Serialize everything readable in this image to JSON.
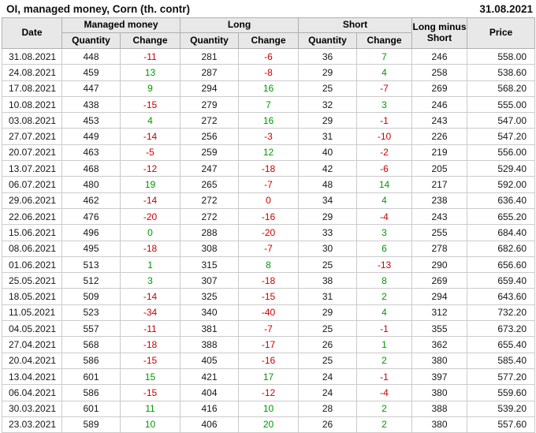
{
  "header": {
    "title": "OI, managed money, Corn (th. contr)",
    "date": "31.08.2021"
  },
  "table": {
    "columns": {
      "date": "Date",
      "managed_money": "Managed money",
      "long": "Long",
      "short": "Short",
      "quantity": "Quantity",
      "change": "Change",
      "long_minus_short": "Long minus Short",
      "price": "Price"
    },
    "colors": {
      "positive": "#009900",
      "negative": "#cc0000"
    },
    "rows": [
      {
        "date": "31.08.2021",
        "mm": {
          "qty": "448",
          "chg": "-11",
          "dir": "neg"
        },
        "long": {
          "qty": "281",
          "chg": "-6",
          "dir": "neg"
        },
        "short": {
          "qty": "36",
          "chg": "7",
          "dir": "pos"
        },
        "lms": "246",
        "price": "558.00"
      },
      {
        "date": "24.08.2021",
        "mm": {
          "qty": "459",
          "chg": "13",
          "dir": "pos"
        },
        "long": {
          "qty": "287",
          "chg": "-8",
          "dir": "neg"
        },
        "short": {
          "qty": "29",
          "chg": "4",
          "dir": "pos"
        },
        "lms": "258",
        "price": "538.60"
      },
      {
        "date": "17.08.2021",
        "mm": {
          "qty": "447",
          "chg": "9",
          "dir": "pos"
        },
        "long": {
          "qty": "294",
          "chg": "16",
          "dir": "pos"
        },
        "short": {
          "qty": "25",
          "chg": "-7",
          "dir": "neg"
        },
        "lms": "269",
        "price": "568.20"
      },
      {
        "date": "10.08.2021",
        "mm": {
          "qty": "438",
          "chg": "-15",
          "dir": "neg"
        },
        "long": {
          "qty": "279",
          "chg": "7",
          "dir": "pos"
        },
        "short": {
          "qty": "32",
          "chg": "3",
          "dir": "pos"
        },
        "lms": "246",
        "price": "555.00"
      },
      {
        "date": "03.08.2021",
        "mm": {
          "qty": "453",
          "chg": "4",
          "dir": "pos"
        },
        "long": {
          "qty": "272",
          "chg": "16",
          "dir": "pos"
        },
        "short": {
          "qty": "29",
          "chg": "-1",
          "dir": "neg"
        },
        "lms": "243",
        "price": "547.00"
      },
      {
        "date": "27.07.2021",
        "mm": {
          "qty": "449",
          "chg": "-14",
          "dir": "neg"
        },
        "long": {
          "qty": "256",
          "chg": "-3",
          "dir": "neg"
        },
        "short": {
          "qty": "31",
          "chg": "-10",
          "dir": "neg"
        },
        "lms": "226",
        "price": "547.20"
      },
      {
        "date": "20.07.2021",
        "mm": {
          "qty": "463",
          "chg": "-5",
          "dir": "neg"
        },
        "long": {
          "qty": "259",
          "chg": "12",
          "dir": "pos"
        },
        "short": {
          "qty": "40",
          "chg": "-2",
          "dir": "neg"
        },
        "lms": "219",
        "price": "556.00"
      },
      {
        "date": "13.07.2021",
        "mm": {
          "qty": "468",
          "chg": "-12",
          "dir": "neg"
        },
        "long": {
          "qty": "247",
          "chg": "-18",
          "dir": "neg"
        },
        "short": {
          "qty": "42",
          "chg": "-6",
          "dir": "neg"
        },
        "lms": "205",
        "price": "529.40"
      },
      {
        "date": "06.07.2021",
        "mm": {
          "qty": "480",
          "chg": "19",
          "dir": "pos"
        },
        "long": {
          "qty": "265",
          "chg": "-7",
          "dir": "neg"
        },
        "short": {
          "qty": "48",
          "chg": "14",
          "dir": "pos"
        },
        "lms": "217",
        "price": "592.00"
      },
      {
        "date": "29.06.2021",
        "mm": {
          "qty": "462",
          "chg": "-14",
          "dir": "neg"
        },
        "long": {
          "qty": "272",
          "chg": "0",
          "dir": "neg"
        },
        "short": {
          "qty": "34",
          "chg": "4",
          "dir": "pos"
        },
        "lms": "238",
        "price": "636.40"
      },
      {
        "date": "22.06.2021",
        "mm": {
          "qty": "476",
          "chg": "-20",
          "dir": "neg"
        },
        "long": {
          "qty": "272",
          "chg": "-16",
          "dir": "neg"
        },
        "short": {
          "qty": "29",
          "chg": "-4",
          "dir": "neg"
        },
        "lms": "243",
        "price": "655.20"
      },
      {
        "date": "15.06.2021",
        "mm": {
          "qty": "496",
          "chg": "0",
          "dir": "pos"
        },
        "long": {
          "qty": "288",
          "chg": "-20",
          "dir": "neg"
        },
        "short": {
          "qty": "33",
          "chg": "3",
          "dir": "pos"
        },
        "lms": "255",
        "price": "684.40"
      },
      {
        "date": "08.06.2021",
        "mm": {
          "qty": "495",
          "chg": "-18",
          "dir": "neg"
        },
        "long": {
          "qty": "308",
          "chg": "-7",
          "dir": "neg"
        },
        "short": {
          "qty": "30",
          "chg": "6",
          "dir": "pos"
        },
        "lms": "278",
        "price": "682.60"
      },
      {
        "date": "01.06.2021",
        "mm": {
          "qty": "513",
          "chg": "1",
          "dir": "pos"
        },
        "long": {
          "qty": "315",
          "chg": "8",
          "dir": "pos"
        },
        "short": {
          "qty": "25",
          "chg": "-13",
          "dir": "neg"
        },
        "lms": "290",
        "price": "656.60"
      },
      {
        "date": "25.05.2021",
        "mm": {
          "qty": "512",
          "chg": "3",
          "dir": "pos"
        },
        "long": {
          "qty": "307",
          "chg": "-18",
          "dir": "neg"
        },
        "short": {
          "qty": "38",
          "chg": "8",
          "dir": "pos"
        },
        "lms": "269",
        "price": "659.40"
      },
      {
        "date": "18.05.2021",
        "mm": {
          "qty": "509",
          "chg": "-14",
          "dir": "neg"
        },
        "long": {
          "qty": "325",
          "chg": "-15",
          "dir": "neg"
        },
        "short": {
          "qty": "31",
          "chg": "2",
          "dir": "pos"
        },
        "lms": "294",
        "price": "643.60"
      },
      {
        "date": "11.05.2021",
        "mm": {
          "qty": "523",
          "chg": "-34",
          "dir": "neg"
        },
        "long": {
          "qty": "340",
          "chg": "-40",
          "dir": "neg"
        },
        "short": {
          "qty": "29",
          "chg": "4",
          "dir": "pos"
        },
        "lms": "312",
        "price": "732.20"
      },
      {
        "date": "04.05.2021",
        "mm": {
          "qty": "557",
          "chg": "-11",
          "dir": "neg"
        },
        "long": {
          "qty": "381",
          "chg": "-7",
          "dir": "neg"
        },
        "short": {
          "qty": "25",
          "chg": "-1",
          "dir": "neg"
        },
        "lms": "355",
        "price": "673.20"
      },
      {
        "date": "27.04.2021",
        "mm": {
          "qty": "568",
          "chg": "-18",
          "dir": "neg"
        },
        "long": {
          "qty": "388",
          "chg": "-17",
          "dir": "neg"
        },
        "short": {
          "qty": "26",
          "chg": "1",
          "dir": "pos"
        },
        "lms": "362",
        "price": "655.40"
      },
      {
        "date": "20.04.2021",
        "mm": {
          "qty": "586",
          "chg": "-15",
          "dir": "neg"
        },
        "long": {
          "qty": "405",
          "chg": "-16",
          "dir": "neg"
        },
        "short": {
          "qty": "25",
          "chg": "2",
          "dir": "pos"
        },
        "lms": "380",
        "price": "585.40"
      },
      {
        "date": "13.04.2021",
        "mm": {
          "qty": "601",
          "chg": "15",
          "dir": "pos"
        },
        "long": {
          "qty": "421",
          "chg": "17",
          "dir": "pos"
        },
        "short": {
          "qty": "24",
          "chg": "-1",
          "dir": "neg"
        },
        "lms": "397",
        "price": "577.20"
      },
      {
        "date": "06.04.2021",
        "mm": {
          "qty": "586",
          "chg": "-15",
          "dir": "neg"
        },
        "long": {
          "qty": "404",
          "chg": "-12",
          "dir": "neg"
        },
        "short": {
          "qty": "24",
          "chg": "-4",
          "dir": "neg"
        },
        "lms": "380",
        "price": "559.60"
      },
      {
        "date": "30.03.2021",
        "mm": {
          "qty": "601",
          "chg": "11",
          "dir": "pos"
        },
        "long": {
          "qty": "416",
          "chg": "10",
          "dir": "pos"
        },
        "short": {
          "qty": "28",
          "chg": "2",
          "dir": "pos"
        },
        "lms": "388",
        "price": "539.20"
      },
      {
        "date": "23.03.2021",
        "mm": {
          "qty": "589",
          "chg": "10",
          "dir": "pos"
        },
        "long": {
          "qty": "406",
          "chg": "20",
          "dir": "pos"
        },
        "short": {
          "qty": "26",
          "chg": "2",
          "dir": "pos"
        },
        "lms": "380",
        "price": "557.60"
      }
    ]
  }
}
